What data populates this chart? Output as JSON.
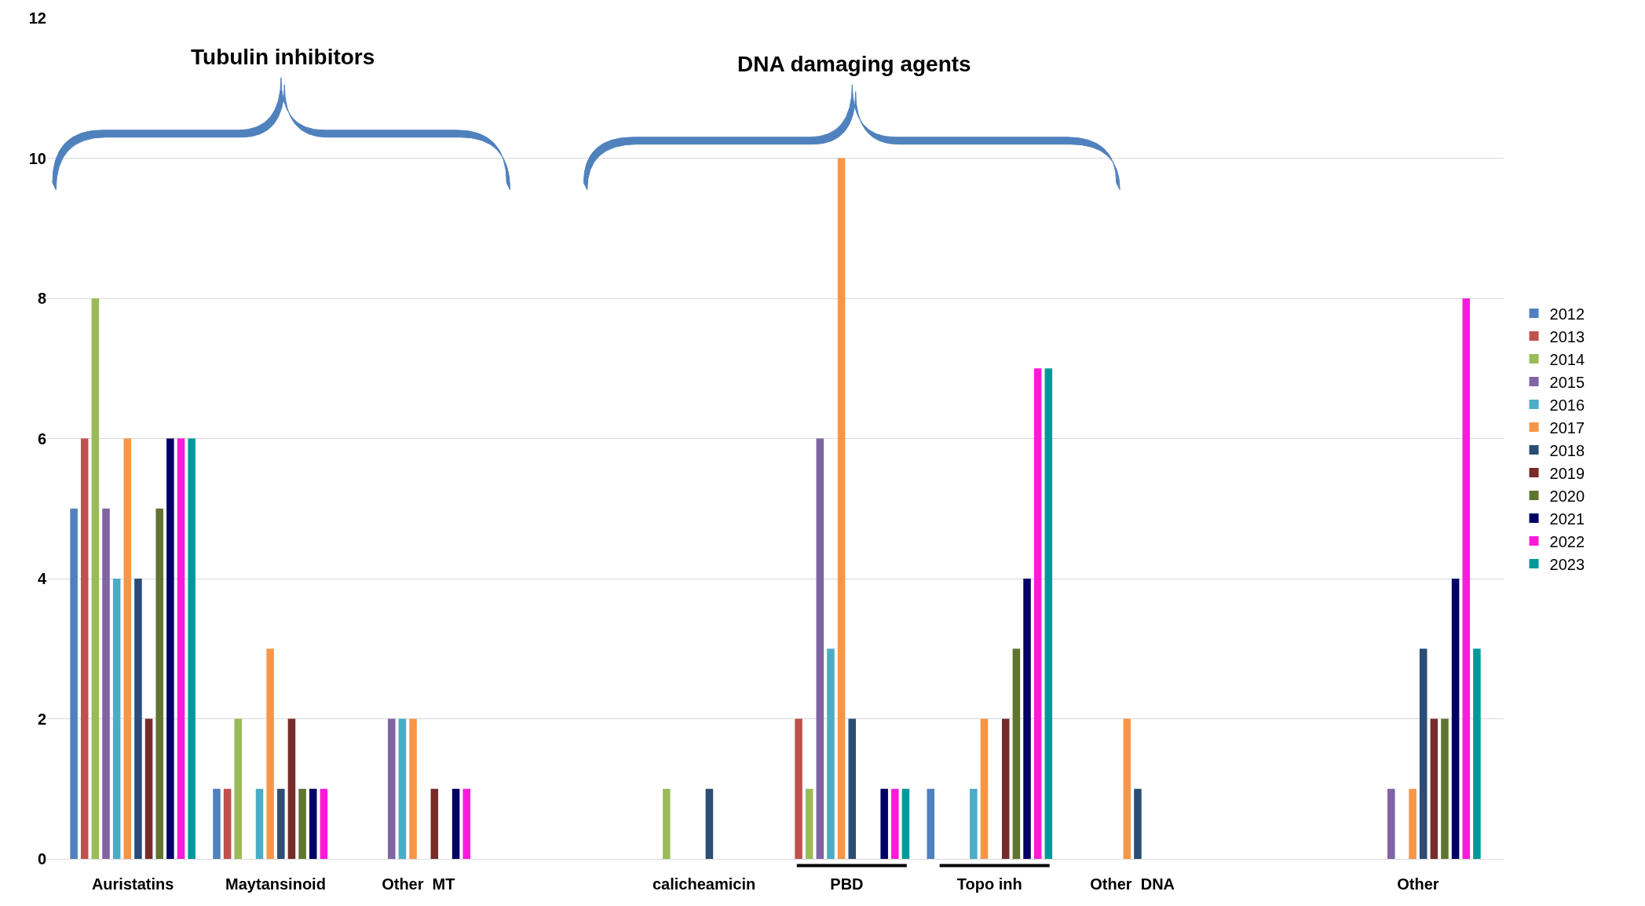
{
  "chart_data": {
    "type": "bar",
    "annotations": [
      "Tubulin inhibitors",
      "DNA damaging agents"
    ],
    "categories": [
      "Auristatins",
      "Maytansinoid",
      "Other  MT",
      null,
      "calicheamicin",
      "PBD",
      "Topo inh",
      "Other  DNA",
      null,
      "Other"
    ],
    "series": [
      {
        "name": "2012",
        "color": "#4f81bd",
        "values": [
          5,
          1,
          0,
          0,
          0,
          0,
          1,
          0,
          0,
          0
        ]
      },
      {
        "name": "2013",
        "color": "#c0504d",
        "values": [
          6,
          1,
          0,
          0,
          0,
          2,
          0,
          0,
          0,
          0
        ]
      },
      {
        "name": "2014",
        "color": "#9bbb59",
        "values": [
          8,
          2,
          0,
          0,
          1,
          1,
          0,
          0,
          0,
          0
        ]
      },
      {
        "name": "2015",
        "color": "#8064a2",
        "values": [
          5,
          0,
          2,
          0,
          0,
          6,
          0,
          0,
          0,
          1
        ]
      },
      {
        "name": "2016",
        "color": "#4bacc6",
        "values": [
          4,
          1,
          2,
          0,
          0,
          3,
          1,
          0,
          0,
          0
        ]
      },
      {
        "name": "2017",
        "color": "#f79646",
        "values": [
          6,
          3,
          2,
          0,
          0,
          10,
          2,
          2,
          0,
          1
        ]
      },
      {
        "name": "2018",
        "color": "#2c4d75",
        "values": [
          4,
          1,
          0,
          0,
          1,
          2,
          0,
          1,
          0,
          3
        ]
      },
      {
        "name": "2019",
        "color": "#772c2a",
        "values": [
          2,
          2,
          1,
          0,
          0,
          0,
          2,
          0,
          0,
          2
        ]
      },
      {
        "name": "2020",
        "color": "#5f7530",
        "values": [
          5,
          1,
          0,
          0,
          0,
          0,
          3,
          0,
          0,
          2
        ]
      },
      {
        "name": "2021",
        "color": "#000066",
        "values": [
          6,
          1,
          1,
          0,
          0,
          1,
          4,
          0,
          0,
          4
        ]
      },
      {
        "name": "2022",
        "color": "#ff1ad9",
        "values": [
          6,
          1,
          1,
          0,
          0,
          1,
          7,
          0,
          0,
          8
        ]
      },
      {
        "name": "2023",
        "color": "#009999",
        "values": [
          6,
          0,
          0,
          0,
          0,
          1,
          7,
          0,
          0,
          3
        ]
      }
    ],
    "ylim": [
      0,
      12
    ],
    "yticks": [
      0,
      2,
      4,
      6,
      8,
      10,
      12
    ],
    "grid": "y",
    "legend": "right"
  }
}
